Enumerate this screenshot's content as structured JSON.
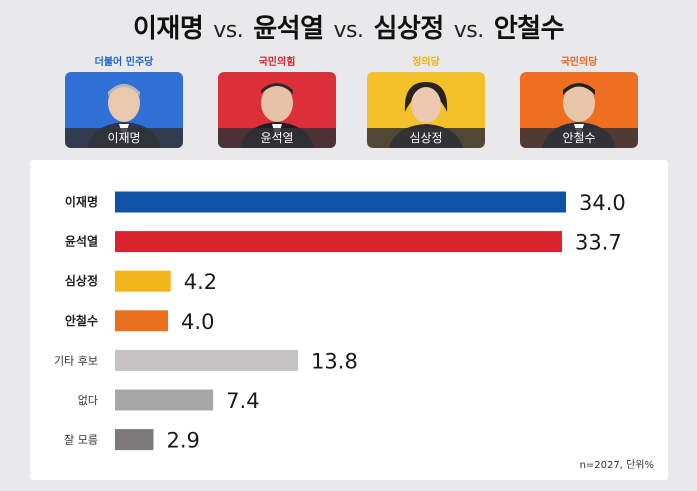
{
  "header": {
    "names": [
      "이재명",
      "윤석열",
      "심상정",
      "안철수"
    ],
    "vs": "vs."
  },
  "candidates": [
    {
      "party": "더불어 민주당",
      "name": "이재명",
      "party_color": "#1a66c8",
      "bg_color": "#2f6fd6"
    },
    {
      "party": "국민의힘",
      "name": "윤석열",
      "party_color": "#d9232e",
      "bg_color": "#dd2f3a"
    },
    {
      "party": "정의당",
      "name": "심상정",
      "party_color": "#e8b400",
      "bg_color": "#f3c22a"
    },
    {
      "party": "국민의당",
      "name": "안철수",
      "party_color": "#e8641c",
      "bg_color": "#ee6e22"
    }
  ],
  "chart_data": {
    "type": "bar",
    "orientation": "horizontal",
    "categories": [
      "이재명",
      "윤석열",
      "심상정",
      "안철수",
      "기타 후보",
      "없다",
      "잘 모름"
    ],
    "values": [
      34.0,
      33.7,
      4.2,
      4.0,
      13.8,
      7.4,
      2.9
    ],
    "value_labels": [
      "34.0",
      "33.7",
      "4.2",
      "4.0",
      "13.8",
      "7.4",
      "2.9"
    ],
    "colors": [
      "#0f52a8",
      "#d9232e",
      "#f2b61a",
      "#e8701e",
      "#c4c2c2",
      "#a8a6a6",
      "#7b7979"
    ],
    "xlim": [
      0,
      34.0
    ],
    "grid": false,
    "legend": "none",
    "note": "n=2027, 단위%"
  }
}
